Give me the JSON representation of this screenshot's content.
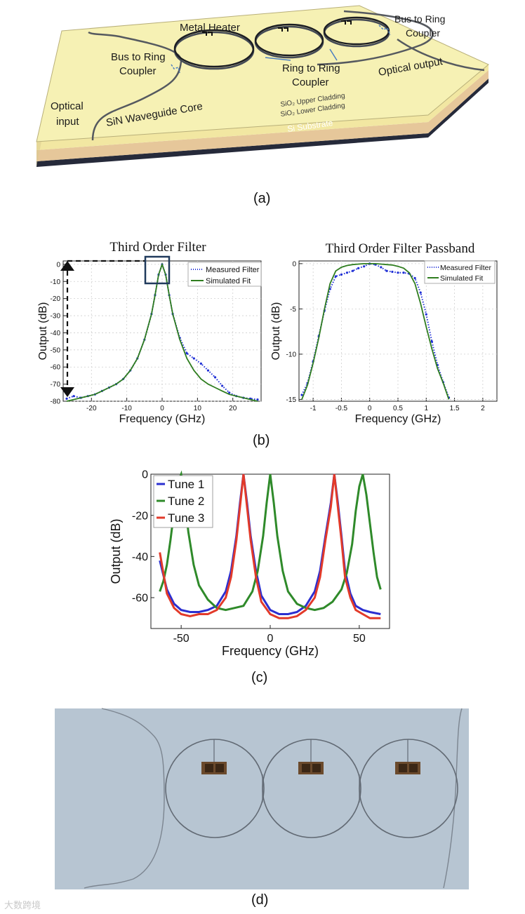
{
  "panel_a": {
    "caption": "(a)",
    "labels": {
      "metal_heater": "Metal Heater",
      "bus_ring_left_1": "Bus to Ring",
      "bus_ring_left_2": "Coupler",
      "bus_ring_right_1": "Bus to Ring",
      "bus_ring_right_2": "Coupler",
      "ring_ring_1": "Ring to Ring",
      "ring_ring_2": "Coupler",
      "optical_input_1": "Optical",
      "optical_input_2": "input",
      "optical_output": "Optical output",
      "waveguide_core": "SiN Waveguide Core",
      "upper_cladding": "SiO₂ Upper Cladding",
      "lower_cladding": "SiO₂ Lower Cladding",
      "substrate": "Si Substrate"
    },
    "colors": {
      "top": "#f6f1b4",
      "cladding_side": "#f2e7a2",
      "lower_side": "#e6c79a",
      "substrate": "#262a3a"
    }
  },
  "panel_b": {
    "caption": "(b)",
    "left": {
      "title": "Third Order Filter",
      "legend": [
        "Measured Filter",
        "Simulated Fit"
      ]
    },
    "right": {
      "title": "Third Order Filter Passband",
      "legend": [
        "Measured Filter",
        "Simulated Fit"
      ]
    }
  },
  "panel_c": {
    "caption": "(c)"
  },
  "panel_d": {
    "caption": "(d)",
    "colors": {
      "background": "#b7c5d2"
    }
  },
  "watermark": "大数跨境",
  "chart_data": [
    {
      "id": "b-left",
      "type": "line",
      "title": "Third Order Filter",
      "xlabel": "Frequency (GHz)",
      "ylabel": "Output (dB)",
      "xlim": [
        -28,
        28
      ],
      "ylim": [
        -80,
        2
      ],
      "xticks": [
        -20,
        -10,
        0,
        10,
        20
      ],
      "yticks": [
        0,
        -10,
        -20,
        -30,
        -40,
        -50,
        -60,
        -70,
        -80
      ],
      "xtick_labels": [
        "-20",
        "-10",
        "0",
        "10",
        "20"
      ],
      "ytick_labels": [
        "0",
        "-10",
        "-20",
        "-30",
        "-40",
        "-50",
        "-60",
        "-70",
        "-80"
      ],
      "grid": true,
      "legend": "top-right",
      "series": [
        {
          "name": "Measured Filter",
          "color": "#1f2fd6",
          "style": "dots",
          "x": [
            -27,
            -25,
            -23,
            -21,
            -19,
            -17,
            -15,
            -13,
            -11,
            -9,
            -7,
            -5,
            -3,
            -2,
            -1,
            0,
            1,
            2,
            3,
            5,
            7,
            9,
            11,
            13,
            15,
            17,
            19,
            21,
            23,
            25,
            27
          ],
          "y": [
            -78.5,
            -77,
            -78,
            -77,
            -76,
            -74,
            -72,
            -70,
            -67,
            -62,
            -55,
            -44,
            -29,
            -18,
            -6,
            0,
            -6,
            -18,
            -29,
            -43,
            -52,
            -55,
            -58,
            -62,
            -66,
            -71,
            -75,
            -77,
            -78,
            -78.5,
            -79
          ]
        },
        {
          "name": "Simulated Fit",
          "color": "#2f7d1f",
          "style": "line",
          "x": [
            -27,
            -25,
            -23,
            -21,
            -19,
            -17,
            -15,
            -13,
            -11,
            -9,
            -7,
            -5,
            -3,
            -2,
            -1,
            0,
            1,
            2,
            3,
            5,
            7,
            9,
            11,
            13,
            15,
            17,
            19,
            21,
            23,
            25,
            27
          ],
          "y": [
            -80,
            -79,
            -78,
            -77,
            -76,
            -74,
            -72,
            -70,
            -67,
            -62,
            -55,
            -44,
            -29,
            -18,
            -6,
            0,
            -6,
            -18,
            -29,
            -44,
            -55,
            -62,
            -67,
            -70,
            -72,
            -74,
            -76,
            -77,
            -78,
            -79,
            -80
          ]
        }
      ]
    },
    {
      "id": "b-right",
      "type": "line",
      "title": "Third Order Filter Passband",
      "xlabel": "Frequency (GHz)",
      "ylabel": "Output (dB)",
      "xlim": [
        -1.25,
        2.25
      ],
      "ylim": [
        -15.2,
        0.3
      ],
      "xticks": [
        -1,
        -0.5,
        0,
        0.5,
        1,
        1.5,
        2
      ],
      "yticks": [
        0,
        -5,
        -10,
        -15
      ],
      "xtick_labels": [
        "-1",
        "-0.5",
        "0",
        "0.5",
        "1",
        "1.5",
        "2"
      ],
      "ytick_labels": [
        "0",
        "-5",
        "-10",
        "-15"
      ],
      "grid": true,
      "legend": "top-right",
      "series": [
        {
          "name": "Measured Filter",
          "color": "#1f2fd6",
          "style": "dots",
          "x": [
            -1.2,
            -1.1,
            -1.0,
            -0.9,
            -0.8,
            -0.7,
            -0.6,
            -0.5,
            -0.4,
            -0.3,
            -0.2,
            -0.1,
            0,
            0.1,
            0.2,
            0.3,
            0.4,
            0.5,
            0.6,
            0.7,
            0.8,
            0.9,
            1.0,
            1.1,
            1.2,
            1.3,
            1.4
          ],
          "y": [
            -14.5,
            -13.2,
            -10.8,
            -8.0,
            -5.2,
            -2.8,
            -1.4,
            -1.2,
            -1.0,
            -0.8,
            -0.5,
            -0.3,
            0,
            -0.1,
            -0.4,
            -0.8,
            -0.9,
            -1.0,
            -1.0,
            -1.1,
            -1.6,
            -3.2,
            -5.6,
            -8.6,
            -11.2,
            -13.1,
            -14.8
          ]
        },
        {
          "name": "Simulated Fit",
          "color": "#2f7d1f",
          "style": "line",
          "x": [
            -1.2,
            -1.1,
            -1.0,
            -0.9,
            -0.8,
            -0.7,
            -0.6,
            -0.5,
            -0.4,
            -0.3,
            -0.2,
            -0.1,
            0,
            0.1,
            0.2,
            0.3,
            0.4,
            0.5,
            0.6,
            0.7,
            0.8,
            0.9,
            1.0,
            1.1,
            1.2,
            1.3,
            1.4
          ],
          "y": [
            -15,
            -13.4,
            -11.0,
            -8.2,
            -5.0,
            -2.2,
            -0.8,
            -0.4,
            -0.2,
            -0.1,
            -0.05,
            0,
            0,
            0,
            -0.05,
            -0.1,
            -0.15,
            -0.3,
            -0.5,
            -1.0,
            -2.2,
            -4.4,
            -7.0,
            -9.4,
            -11.6,
            -13.2,
            -15
          ]
        }
      ]
    },
    {
      "id": "c",
      "type": "line",
      "xlabel": "Frequency (GHz)",
      "ylabel": "Output (dB)",
      "xlim": [
        -67,
        67
      ],
      "ylim": [
        -75,
        0
      ],
      "xticks": [
        -50,
        0,
        50
      ],
      "yticks": [
        0,
        -20,
        -40,
        -60
      ],
      "xtick_labels": [
        "-50",
        "0",
        "50"
      ],
      "ytick_labels": [
        "0",
        "-20",
        "-40",
        "-60"
      ],
      "grid": false,
      "legend": "top-left",
      "series": [
        {
          "name": "Tune 1",
          "color": "#2b2fd0",
          "x": [
            -62,
            -58,
            -54,
            -50,
            -45,
            -40,
            -35,
            -30,
            -25,
            -22,
            -19,
            -17,
            -15,
            -13,
            -11,
            -8,
            -5,
            0,
            5,
            10,
            15,
            20,
            25,
            28,
            31,
            34,
            36,
            38,
            40,
            42,
            45,
            48,
            52,
            56,
            62
          ],
          "y": [
            -42,
            -56,
            -63,
            -66,
            -67,
            -67,
            -66,
            -64,
            -57,
            -47,
            -30,
            -14,
            0,
            -14,
            -30,
            -47,
            -59,
            -66,
            -68,
            -68,
            -67,
            -64,
            -57,
            -47,
            -30,
            -14,
            0,
            -14,
            -30,
            -47,
            -58,
            -64,
            -66,
            -67,
            -68
          ]
        },
        {
          "name": "Tune 2",
          "color": "#2f8a2a",
          "x": [
            -62,
            -60,
            -58,
            -56,
            -54,
            -52,
            -50,
            -48,
            -46,
            -43,
            -40,
            -35,
            -30,
            -25,
            -20,
            -15,
            -10,
            -7,
            -4,
            -2,
            0,
            2,
            4,
            7,
            10,
            15,
            20,
            25,
            30,
            35,
            40,
            43,
            46,
            48,
            50,
            52,
            54,
            56,
            58,
            60,
            62
          ],
          "y": [
            -57,
            -52,
            -44,
            -32,
            -18,
            -4,
            0,
            -12,
            -28,
            -44,
            -54,
            -61,
            -65,
            -66,
            -65,
            -64,
            -57,
            -47,
            -30,
            -14,
            0,
            -14,
            -30,
            -47,
            -57,
            -63,
            -65,
            -66,
            -65,
            -62,
            -56,
            -48,
            -34,
            -18,
            -6,
            0,
            -10,
            -24,
            -38,
            -50,
            -56
          ]
        },
        {
          "name": "Tune 3",
          "color": "#e23a2a",
          "x": [
            -62,
            -58,
            -54,
            -50,
            -45,
            -40,
            -35,
            -30,
            -25,
            -22,
            -19,
            -17,
            -15,
            -13,
            -11,
            -8,
            -5,
            0,
            5,
            10,
            15,
            20,
            25,
            28,
            31,
            34,
            36,
            38,
            40,
            42,
            45,
            48,
            52,
            56,
            62
          ],
          "y": [
            -38,
            -58,
            -65,
            -68,
            -69,
            -68,
            -68,
            -66,
            -60,
            -50,
            -32,
            -16,
            0,
            -16,
            -32,
            -50,
            -62,
            -68,
            -70,
            -70,
            -69,
            -66,
            -60,
            -50,
            -32,
            -16,
            0,
            -16,
            -32,
            -50,
            -60,
            -66,
            -68,
            -70,
            -70
          ]
        }
      ]
    }
  ]
}
